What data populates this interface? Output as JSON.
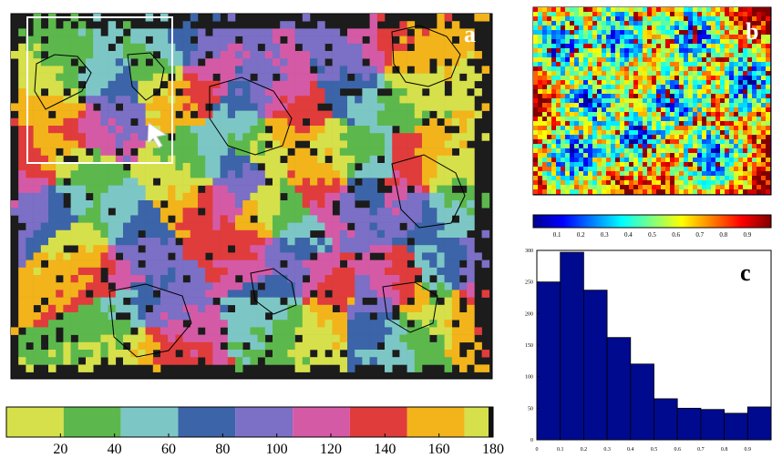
{
  "panels": {
    "a": {
      "label": "a"
    },
    "b": {
      "label": "b"
    },
    "c": {
      "label": "c"
    }
  },
  "colorbar_a": {
    "ticks": [
      "20",
      "40",
      "60",
      "80",
      "100",
      "120",
      "140",
      "160",
      "180"
    ],
    "colors": [
      "#d6e04a",
      "#5cb84c",
      "#7cc7c6",
      "#3c64a8",
      "#7b6fc6",
      "#d55aa6",
      "#e03c3c",
      "#f2b41a",
      "#d6e04a"
    ]
  },
  "colorbar_b": {
    "ticks": [
      "0.1",
      "0.2",
      "0.3",
      "0.4",
      "0.5",
      "0.6",
      "0.7",
      "0.8",
      "0.9"
    ]
  },
  "chart_data": [
    {
      "type": "heatmap",
      "title": "",
      "panel": "a",
      "colormap": "cyclic orientation",
      "clim": [
        0,
        180
      ],
      "colorbar_ticks": [
        20,
        40,
        60,
        80,
        100,
        120,
        140,
        160,
        180
      ]
    },
    {
      "type": "heatmap",
      "title": "",
      "panel": "b",
      "colormap": "jet",
      "clim": [
        0,
        1
      ],
      "colorbar_ticks": [
        0.1,
        0.2,
        0.3,
        0.4,
        0.5,
        0.6,
        0.7,
        0.8,
        0.9
      ]
    },
    {
      "type": "bar",
      "title": "",
      "panel": "c",
      "categories": [
        "0.05",
        "0.15",
        "0.25",
        "0.35",
        "0.45",
        "0.55",
        "0.65",
        "0.75",
        "0.85",
        "0.95"
      ],
      "values": [
        250,
        297,
        237,
        162,
        120,
        65,
        50,
        48,
        42,
        52
      ],
      "xlim": [
        0,
        1
      ],
      "ylim": [
        0,
        300
      ],
      "xticks": [
        "0",
        "0.1",
        "0.2",
        "0.3",
        "0.4",
        "0.5",
        "0.6",
        "0.7",
        "0.8",
        "0.9"
      ],
      "yticks": [
        "0",
        "50",
        "100",
        "150",
        "200",
        "250",
        "300"
      ],
      "bar_color": "#000a8f"
    }
  ]
}
